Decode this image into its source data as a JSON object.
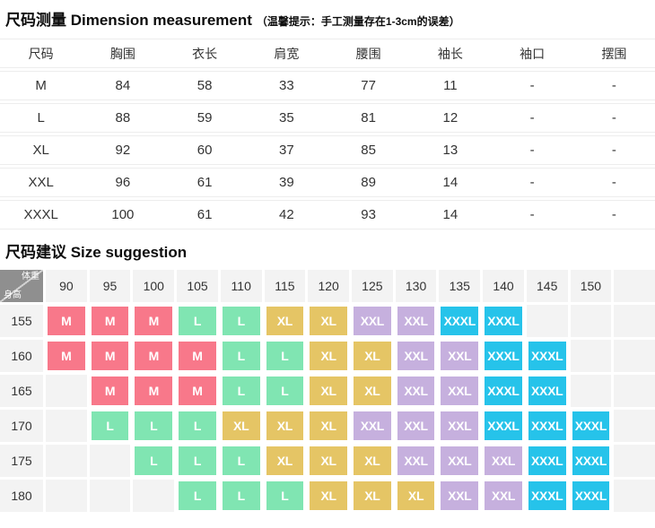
{
  "measurement": {
    "title": "尺码测量 Dimension measurement",
    "hint": "（温馨提示：手工测量存在1-3cm的误差）",
    "columns": [
      "尺码",
      "胸围",
      "衣长",
      "肩宽",
      "腰围",
      "袖长",
      "袖口",
      "摆围"
    ],
    "rows": [
      [
        "M",
        "84",
        "58",
        "33",
        "77",
        "11",
        "-",
        "-"
      ],
      [
        "L",
        "88",
        "59",
        "35",
        "81",
        "12",
        "-",
        "-"
      ],
      [
        "XL",
        "92",
        "60",
        "37",
        "85",
        "13",
        "-",
        "-"
      ],
      [
        "XXL",
        "96",
        "61",
        "39",
        "89",
        "14",
        "-",
        "-"
      ],
      [
        "XXXL",
        "100",
        "61",
        "42",
        "93",
        "14",
        "-",
        "-"
      ]
    ]
  },
  "suggestion": {
    "title": "尺码建议 Size suggestion",
    "corner": {
      "top_label": "体重",
      "bottom_label": "身高"
    },
    "weight_headers": [
      "90",
      "95",
      "100",
      "105",
      "110",
      "115",
      "120",
      "125",
      "130",
      "135",
      "140",
      "145",
      "150",
      ""
    ],
    "rows": [
      {
        "height": "155",
        "cells": [
          "M",
          "M",
          "M",
          "L",
          "L",
          "XL",
          "XL",
          "XXL",
          "XXL",
          "XXXL",
          "XXXL",
          "",
          "",
          ""
        ]
      },
      {
        "height": "160",
        "cells": [
          "M",
          "M",
          "M",
          "M",
          "L",
          "L",
          "XL",
          "XL",
          "XXL",
          "XXL",
          "XXXL",
          "XXXL",
          "",
          ""
        ]
      },
      {
        "height": "165",
        "cells": [
          "",
          "M",
          "M",
          "M",
          "L",
          "L",
          "XL",
          "XL",
          "XXL",
          "XXL",
          "XXXL",
          "XXXL",
          "",
          ""
        ]
      },
      {
        "height": "170",
        "cells": [
          "",
          "L",
          "L",
          "L",
          "XL",
          "XL",
          "XL",
          "XXL",
          "XXL",
          "XXL",
          "XXXL",
          "XXXL",
          "XXXL",
          ""
        ]
      },
      {
        "height": "175",
        "cells": [
          "",
          "",
          "L",
          "L",
          "L",
          "XL",
          "XL",
          "XL",
          "XXL",
          "XXL",
          "XXL",
          "XXXL",
          "XXXL",
          ""
        ]
      },
      {
        "height": "180",
        "cells": [
          "",
          "",
          "",
          "L",
          "L",
          "L",
          "XL",
          "XL",
          "XL",
          "XXL",
          "XXL",
          "XXXL",
          "XXXL",
          ""
        ]
      }
    ],
    "size_colors": {
      "M": "#f8788a",
      "L": "#80e5b2",
      "XL": "#e5c565",
      "XXL": "#c6b0de",
      "XXXL": "#26c3ea"
    },
    "corner_bg": "#8f8f8f",
    "cell_bg": "#f3f3f3"
  }
}
